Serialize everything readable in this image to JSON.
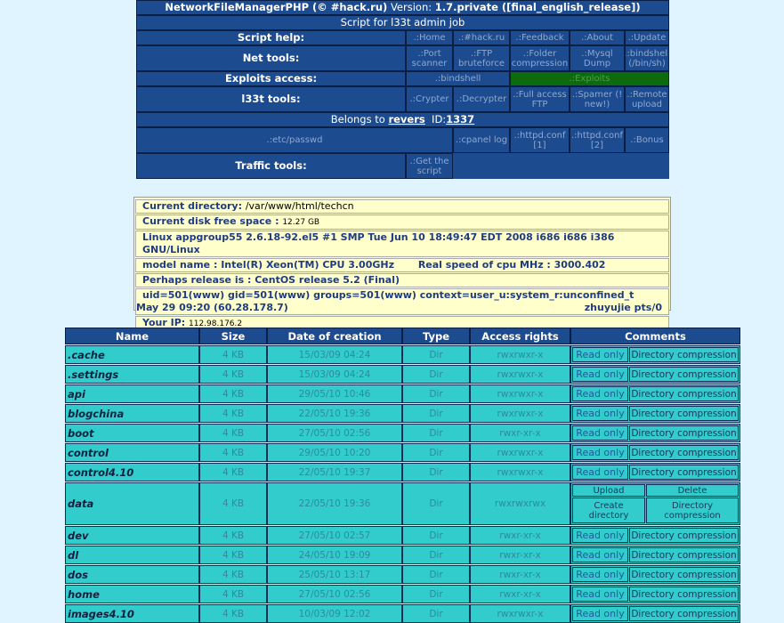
{
  "header": {
    "title_prefix": "NetworkFileManagerPHP (© #hack.ru)",
    "version_label": "Version:",
    "version": "1.7.private ([final_english_release])",
    "subtitle": "Script for l33t admin job",
    "belongs_prefix": "Belongs to",
    "owner": "revers",
    "id_label": "ID:",
    "id": "1337"
  },
  "script_help": {
    "label": "Script help:",
    "items": [
      ".:Home",
      ".:#hack.ru",
      ".:Feedback",
      ".:About",
      ".:Update"
    ]
  },
  "net_tools": {
    "label": "Net tools:",
    "items": [
      ".:Port scanner",
      ".:FTP bruteforce",
      ".:Folder compression",
      ".:Mysql Dump",
      ".:bindshell (/bin/sh)"
    ]
  },
  "exploits": {
    "label": "Exploits access:",
    "items": [
      ".:bindshell",
      ".:Exploits"
    ]
  },
  "l33t_tools": {
    "label": "l33t tools:",
    "items": [
      ".:Crypter",
      ".:Decrypter",
      ".:Full access FTP",
      ".:Spamer (! new!)",
      ".:Remote upload"
    ]
  },
  "files_row": {
    "items": [
      ".:etc/passwd",
      ".:cpanel log",
      ".:httpd.conf [1]",
      ".:httpd.conf [2]",
      ".:Bonus"
    ]
  },
  "traffic_tools": {
    "label": "Traffic tools:",
    "items": [
      ".:Get the script"
    ]
  },
  "info": {
    "cwd_label": "Current directory:",
    "cwd": "/var/www/html/techcn",
    "disk_label": "Current disk free space",
    "disk": "12.27 GB",
    "uname": "Linux appgroup55 2.6.18-92.el5 #1 SMP Tue Jun 10 18:49:47 EDT 2008 i686 i686 i386 GNU/Linux",
    "cpu_model": "model name : Intel(R) Xeon(TM) CPU 3.00GHz",
    "cpu_speed": "Real speed of cpu MHz : 3000.402",
    "release": "Perhaps release is :  CentOS release 5.2 (Final)",
    "uid": "uid=501(www) gid=501(www) groups=501(www) context=user_u:system_r:unconfined_t",
    "who": "zhuyujie pts/0",
    "who2": "May 29 09:20 (60.28.178.7)",
    "ip_label": "Your IP:",
    "ip": "112.98.176.2"
  },
  "table": {
    "headers": [
      "Name",
      "Size",
      "Date of creation",
      "Type",
      "Access rights",
      "Comments"
    ],
    "read_only": "Read only",
    "compress": "Directory compression",
    "writable_actions": [
      "Upload",
      "Delete",
      "Create directory",
      "Directory compression"
    ],
    "rows": [
      {
        "name": ".cache",
        "size": "4 KB",
        "date": "15/03/09 04:24",
        "type": "Dir",
        "rights": "rwxrwxr-x"
      },
      {
        "name": ".settings",
        "size": "4 KB",
        "date": "15/03/09 04:24",
        "type": "Dir",
        "rights": "rwxrwxr-x"
      },
      {
        "name": "api",
        "size": "4 KB",
        "date": "29/05/10 10:46",
        "type": "Dir",
        "rights": "rwxrwxr-x"
      },
      {
        "name": "blogchina",
        "size": "4 KB",
        "date": "22/05/10 19:36",
        "type": "Dir",
        "rights": "rwxrwxr-x"
      },
      {
        "name": "boot",
        "size": "4 KB",
        "date": "27/05/10 02:56",
        "type": "Dir",
        "rights": "rwxr-xr-x"
      },
      {
        "name": "control",
        "size": "4 KB",
        "date": "29/05/10 10:20",
        "type": "Dir",
        "rights": "rwxrwxr-x"
      },
      {
        "name": "control4.10",
        "size": "4 KB",
        "date": "22/05/10 19:37",
        "type": "Dir",
        "rights": "rwxrwxr-x"
      },
      {
        "name": "data",
        "size": "4 KB",
        "date": "22/05/10 19:36",
        "type": "Dir",
        "rights": "rwxrwxrwx",
        "writable": true
      },
      {
        "name": "dev",
        "size": "4 KB",
        "date": "27/05/10 02:57",
        "type": "Dir",
        "rights": "rwxr-xr-x"
      },
      {
        "name": "dl",
        "size": "4 KB",
        "date": "24/05/10 19:09",
        "type": "Dir",
        "rights": "rwxr-xr-x"
      },
      {
        "name": "dos",
        "size": "4 KB",
        "date": "25/05/10 13:17",
        "type": "Dir",
        "rights": "rwxr-xr-x"
      },
      {
        "name": "home",
        "size": "4 KB",
        "date": "27/05/10 02:56",
        "type": "Dir",
        "rights": "rwxr-xr-x"
      },
      {
        "name": "images4.10",
        "size": "4 KB",
        "date": "10/03/09 12:02",
        "type": "Dir",
        "rights": "rwxrwxr-x"
      }
    ]
  }
}
